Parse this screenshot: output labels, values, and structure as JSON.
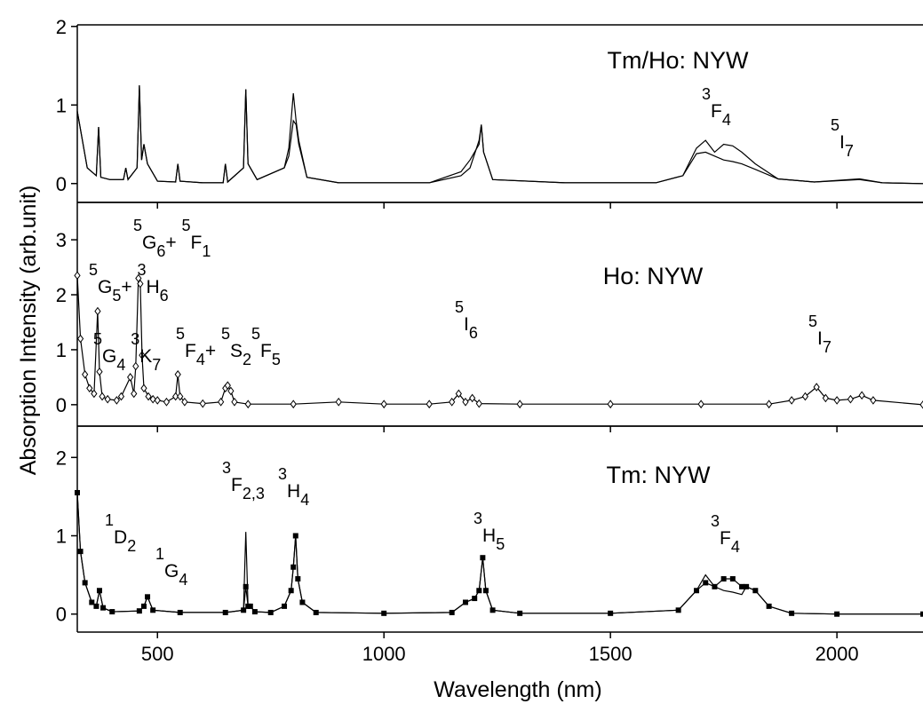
{
  "chart_data": [
    {
      "type": "line",
      "title": "Tm/Ho: NYW",
      "x": [
        323,
        345,
        365,
        370,
        375,
        395,
        425,
        430,
        435,
        455,
        460,
        465,
        470,
        478,
        500,
        540,
        545,
        550,
        600,
        645,
        650,
        655,
        690,
        695,
        700,
        720,
        780,
        790,
        800,
        806,
        812,
        830,
        900,
        1100,
        1170,
        1190,
        1210,
        1215,
        1220,
        1240,
        1400,
        1600,
        1660,
        1690,
        1710,
        1730,
        1750,
        1770,
        1790,
        1820,
        1870,
        1950,
        2050,
        2100,
        2190
      ],
      "series": [
        {
          "color": "#000000",
          "values": [
            0.92,
            0.2,
            0.1,
            0.72,
            0.08,
            0.05,
            0.05,
            0.2,
            0.05,
            0.2,
            1.25,
            0.3,
            0.5,
            0.25,
            0.03,
            0.02,
            0.25,
            0.03,
            0.01,
            0.01,
            0.25,
            0.02,
            0.2,
            1.2,
            0.25,
            0.05,
            0.2,
            0.45,
            1.15,
            0.8,
            0.55,
            0.08,
            0.01,
            0.01,
            0.1,
            0.2,
            0.55,
            0.75,
            0.4,
            0.05,
            0.01,
            0.01,
            0.1,
            0.45,
            0.55,
            0.4,
            0.5,
            0.48,
            0.4,
            0.25,
            0.06,
            0.02,
            0.05,
            0.01,
            0.0
          ]
        },
        {
          "color": "#000000",
          "values": [
            0.92,
            0.2,
            0.1,
            0.72,
            0.08,
            0.05,
            0.05,
            0.2,
            0.05,
            0.2,
            1.25,
            0.3,
            0.5,
            0.25,
            0.03,
            0.02,
            0.25,
            0.03,
            0.01,
            0.01,
            0.25,
            0.02,
            0.2,
            1.2,
            0.25,
            0.05,
            0.2,
            0.35,
            0.8,
            0.75,
            0.5,
            0.08,
            0.01,
            0.01,
            0.15,
            0.3,
            0.5,
            0.75,
            0.4,
            0.05,
            0.01,
            0.01,
            0.1,
            0.38,
            0.4,
            0.35,
            0.3,
            0.28,
            0.25,
            0.18,
            0.06,
            0.02,
            0.06,
            0.01,
            0.0
          ]
        }
      ],
      "annotations": [
        [
          {
            "sup": "3"
          },
          {
            "text": "F"
          },
          {
            "sub": "4"
          }
        ],
        [
          {
            "sup": "5"
          },
          {
            "text": "I"
          },
          {
            "sub": "7"
          }
        ]
      ],
      "xlim": [
        323,
        2190
      ],
      "xticks": [
        500,
        1000,
        1500,
        2000
      ],
      "ylim": [
        -0.24,
        2.02
      ],
      "yticks": [
        0,
        1,
        2
      ]
    },
    {
      "type": "line",
      "title": "Ho: NYW",
      "ylabel": "Absorption Intensity (arb.unit)",
      "x": [
        323,
        330,
        340,
        350,
        360,
        368,
        372,
        378,
        390,
        410,
        420,
        440,
        448,
        452,
        458,
        462,
        466,
        470,
        480,
        490,
        500,
        520,
        540,
        545,
        550,
        560,
        600,
        640,
        650,
        655,
        662,
        670,
        700,
        800,
        900,
        1000,
        1100,
        1150,
        1165,
        1180,
        1195,
        1210,
        1300,
        1500,
        1700,
        1850,
        1900,
        1930,
        1955,
        1975,
        2000,
        2030,
        2055,
        2080,
        2190
      ],
      "series": [
        {
          "color": "#000000",
          "marker": "diamond",
          "values": [
            2.35,
            1.2,
            0.55,
            0.3,
            0.2,
            1.7,
            0.6,
            0.15,
            0.1,
            0.08,
            0.15,
            0.5,
            0.2,
            0.7,
            2.3,
            2.2,
            0.9,
            0.3,
            0.15,
            0.1,
            0.08,
            0.05,
            0.15,
            0.55,
            0.15,
            0.05,
            0.02,
            0.05,
            0.3,
            0.35,
            0.25,
            0.05,
            0.01,
            0.01,
            0.05,
            0.01,
            0.01,
            0.05,
            0.2,
            0.05,
            0.12,
            0.02,
            0.01,
            0.01,
            0.01,
            0.01,
            0.08,
            0.15,
            0.32,
            0.12,
            0.08,
            0.1,
            0.17,
            0.08,
            0.0
          ]
        }
      ],
      "annotations": [
        [
          {
            "sup": "5"
          },
          {
            "text": "G"
          },
          {
            "sub": "6"
          },
          {
            "text": "+ "
          },
          {
            "sup": "5"
          },
          {
            "text": "F"
          },
          {
            "sub": "1"
          }
        ],
        [
          {
            "sup": "5"
          },
          {
            "text": "G"
          },
          {
            "sub": "5"
          },
          {
            "text": "+ "
          },
          {
            "sup": "3"
          },
          {
            "text": "H"
          },
          {
            "sub": "6"
          }
        ],
        [
          {
            "sup": "5"
          },
          {
            "text": "G"
          },
          {
            "sub": "4"
          },
          {
            "text": " "
          },
          {
            "sup": "3"
          },
          {
            "text": "K"
          },
          {
            "sub": "7"
          }
        ],
        [
          {
            "sup": "5"
          },
          {
            "text": "F"
          },
          {
            "sub": "4"
          },
          {
            "text": "+ "
          },
          {
            "sup": "5"
          },
          {
            "text": "S"
          },
          {
            "sub": "2"
          },
          {
            "sup": "5"
          },
          {
            "text": "F"
          },
          {
            "sub": "5"
          }
        ],
        [
          {
            "sup": "5"
          },
          {
            "text": "I"
          },
          {
            "sub": "6"
          }
        ],
        [
          {
            "sup": "5"
          },
          {
            "text": "I"
          },
          {
            "sub": "7"
          }
        ]
      ],
      "xlim": [
        323,
        2190
      ],
      "xticks": [
        500,
        1000,
        1500,
        2000
      ],
      "ylim": [
        -0.39,
        3.68
      ],
      "yticks": [
        0,
        1,
        2,
        3
      ]
    },
    {
      "type": "line",
      "title": "Tm: NYW",
      "xlabel": "Wavelength (nm)",
      "x": [
        323,
        330,
        340,
        355,
        365,
        372,
        380,
        400,
        460,
        470,
        478,
        490,
        550,
        650,
        690,
        695,
        700,
        705,
        715,
        750,
        780,
        795,
        800,
        805,
        810,
        820,
        850,
        1000,
        1150,
        1180,
        1200,
        1210,
        1218,
        1225,
        1240,
        1300,
        1500,
        1650,
        1690,
        1710,
        1730,
        1750,
        1770,
        1790,
        1800,
        1820,
        1850,
        1900,
        2000,
        2190
      ],
      "series": [
        {
          "color": "#000000",
          "marker": "square",
          "values": [
            1.55,
            0.8,
            0.4,
            0.15,
            0.1,
            0.3,
            0.08,
            0.03,
            0.04,
            0.1,
            0.22,
            0.05,
            0.02,
            0.02,
            0.05,
            0.35,
            0.1,
            0.1,
            0.03,
            0.02,
            0.1,
            0.3,
            0.6,
            1.0,
            0.45,
            0.15,
            0.02,
            0.01,
            0.02,
            0.15,
            0.2,
            0.3,
            0.72,
            0.3,
            0.05,
            0.01,
            0.01,
            0.05,
            0.3,
            0.4,
            0.35,
            0.45,
            0.45,
            0.35,
            0.35,
            0.3,
            0.1,
            0.01,
            0.0,
            0.0
          ]
        },
        {
          "color": "#000000",
          "values": [
            1.55,
            0.8,
            0.4,
            0.15,
            0.1,
            0.3,
            0.08,
            0.03,
            0.04,
            0.1,
            0.22,
            0.05,
            0.02,
            0.02,
            0.05,
            1.05,
            0.1,
            0.1,
            0.03,
            0.02,
            0.1,
            0.3,
            0.6,
            1.0,
            0.45,
            0.15,
            0.02,
            0.01,
            0.02,
            0.15,
            0.2,
            0.3,
            0.72,
            0.3,
            0.05,
            0.01,
            0.01,
            0.05,
            0.3,
            0.5,
            0.35,
            0.3,
            0.28,
            0.25,
            0.35,
            0.3,
            0.1,
            0.01,
            0.0,
            0.0
          ]
        }
      ],
      "annotations": [
        [
          {
            "sup": "1"
          },
          {
            "text": "D"
          },
          {
            "sub": "2"
          }
        ],
        [
          {
            "sup": "1"
          },
          {
            "text": "G"
          },
          {
            "sub": "4"
          }
        ],
        [
          {
            "sup": "3"
          },
          {
            "text": "F"
          },
          {
            "sub": "2,3"
          }
        ],
        [
          {
            "sup": "3"
          },
          {
            "text": "H"
          },
          {
            "sub": "4"
          }
        ],
        [
          {
            "sup": "3"
          },
          {
            "text": "H"
          },
          {
            "sub": "5"
          }
        ],
        [
          {
            "sup": "3"
          },
          {
            "text": "F"
          },
          {
            "sub": "4"
          }
        ]
      ],
      "xlim": [
        323,
        2190
      ],
      "xticks": [
        500,
        1000,
        1500,
        2000
      ],
      "ylim": [
        -0.23,
        2.4
      ],
      "yticks": [
        0,
        1,
        2
      ]
    }
  ]
}
